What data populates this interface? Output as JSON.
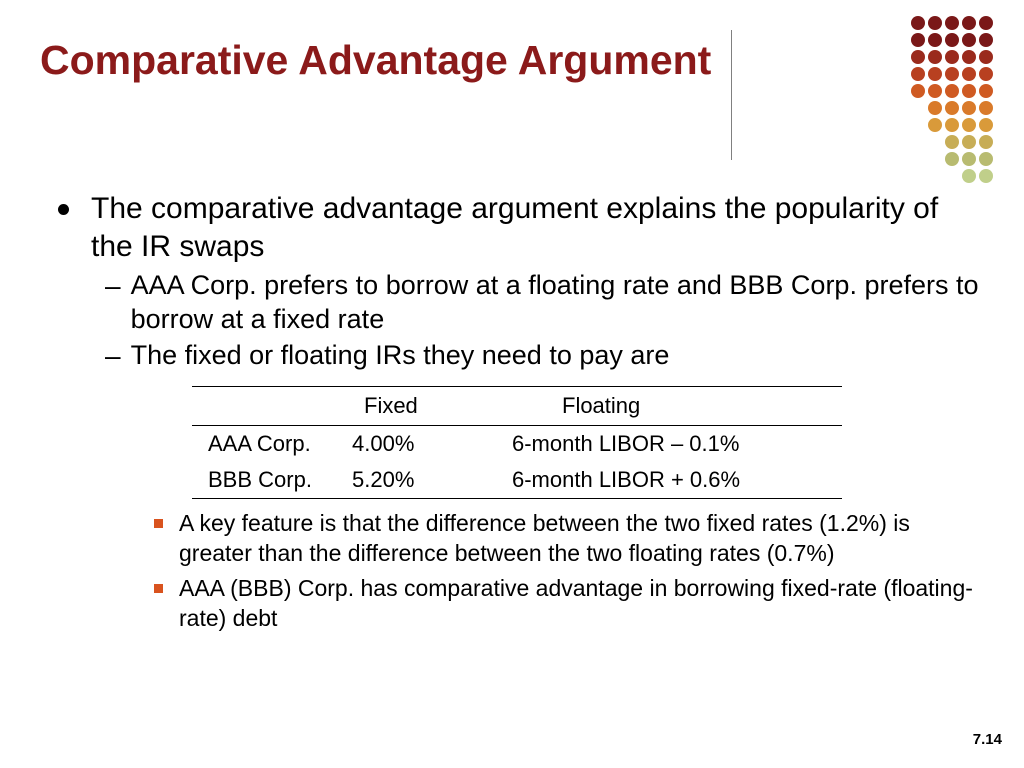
{
  "title": "Comparative Advantage Argument",
  "bullets": {
    "l1": "The comparative advantage argument explains the popularity of the IR swaps",
    "l2a": "AAA Corp. prefers to borrow at a floating rate and BBB Corp. prefers to borrow at a fixed rate",
    "l2b": "The fixed or floating IRs they need to pay are",
    "l3a": "A key feature is that the difference between the two fixed rates (1.2%) is greater than the difference between the two floating rates (0.7%)",
    "l3b": "AAA (BBB) Corp. has comparative advantage in borrowing fixed-rate (floating-rate) debt"
  },
  "table": {
    "headers": {
      "fixed": "Fixed",
      "floating": "Floating"
    },
    "rows": [
      {
        "company": "AAA Corp.",
        "fixed": "4.00%",
        "floating": "6-month LIBOR – 0.1%"
      },
      {
        "company": "BBB Corp.",
        "fixed": "5.20%",
        "floating": "6-month LIBOR + 0.6%"
      }
    ]
  },
  "page_number": "7.14",
  "colors": {
    "title": "#8b1a1a",
    "square_bullet": "#d9531e",
    "dot_rows": [
      "#7a1818",
      "#7a1818",
      "#9a2a1c",
      "#b84020",
      "#cf5a22",
      "#d97a2a",
      "#d99a3a",
      "#c7ad56",
      "#b8bb70",
      "#c0cf8a"
    ]
  }
}
